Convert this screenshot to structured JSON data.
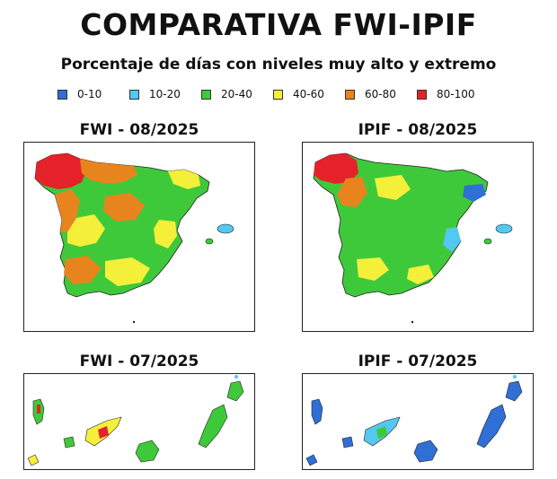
{
  "header": {
    "title": "COMPARATIVA FWI-IPIF",
    "subtitle": "Porcentaje de días con niveles muy alto y extremo"
  },
  "legend": [
    {
      "label": "0-10",
      "color": "#2f6fd6"
    },
    {
      "label": "10-20",
      "color": "#53c8f0"
    },
    {
      "label": "20-40",
      "color": "#3ec93a"
    },
    {
      "label": "40-60",
      "color": "#f4f03a"
    },
    {
      "label": "60-80",
      "color": "#e8841e"
    },
    {
      "label": "80-100",
      "color": "#e5222a"
    }
  ],
  "panels": {
    "fwi_peninsula": {
      "title": "FWI - 08/2025"
    },
    "ipif_peninsula": {
      "title": "IPIF - 08/2025"
    },
    "fwi_canarias": {
      "title": "FWI - 07/2025"
    },
    "ipif_canarias": {
      "title": "IPIF - 07/2025"
    }
  }
}
